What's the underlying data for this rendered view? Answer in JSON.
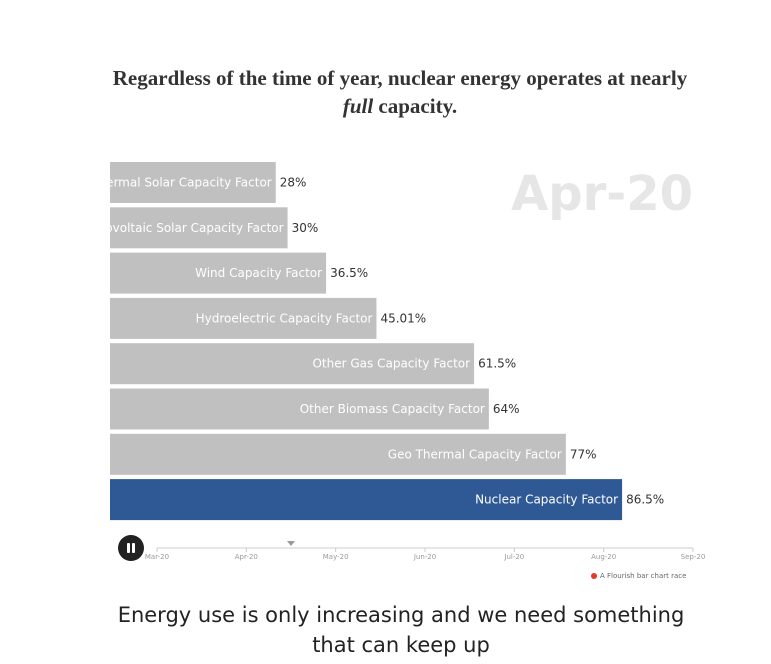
{
  "title": {
    "before": "Regardless of the time of year, nuclear energy operates at nearly ",
    "emphasis": "full",
    "after": " capacity."
  },
  "chart_data": {
    "type": "bar",
    "orientation": "horizontal",
    "current_period": "Apr-20",
    "categories": [
      "Thermal Solar Capacity Factor",
      "Photovoltaic Solar Capacity Factor",
      "Wind Capacity Factor",
      "Hydroelectric Capacity Factor",
      "Other Gas Capacity Factor",
      "Other Biomass Capacity Factor",
      "Geo Thermal Capacity Factor",
      "Nuclear Capacity Factor"
    ],
    "values": [
      28,
      30,
      36.5,
      45.01,
      61.5,
      64,
      77,
      86.5
    ],
    "value_labels": [
      "28%",
      "30%",
      "36.5%",
      "45.01%",
      "61.5%",
      "64%",
      "77%",
      "86.5%"
    ],
    "highlighted": "Nuclear Capacity Factor",
    "bar_color": "#c0c0c0",
    "highlight_color": "#2f5995",
    "xlim": [
      0,
      100
    ],
    "timeline": {
      "ticks": [
        "Mar-20",
        "Apr-20",
        "May-20",
        "Jun-20",
        "Jul-20",
        "Aug-20",
        "Sep-20"
      ],
      "progress": 0.25
    }
  },
  "credit": "A Flourish bar chart race",
  "footer": "Energy use is only increasing and we need something that can keep up"
}
